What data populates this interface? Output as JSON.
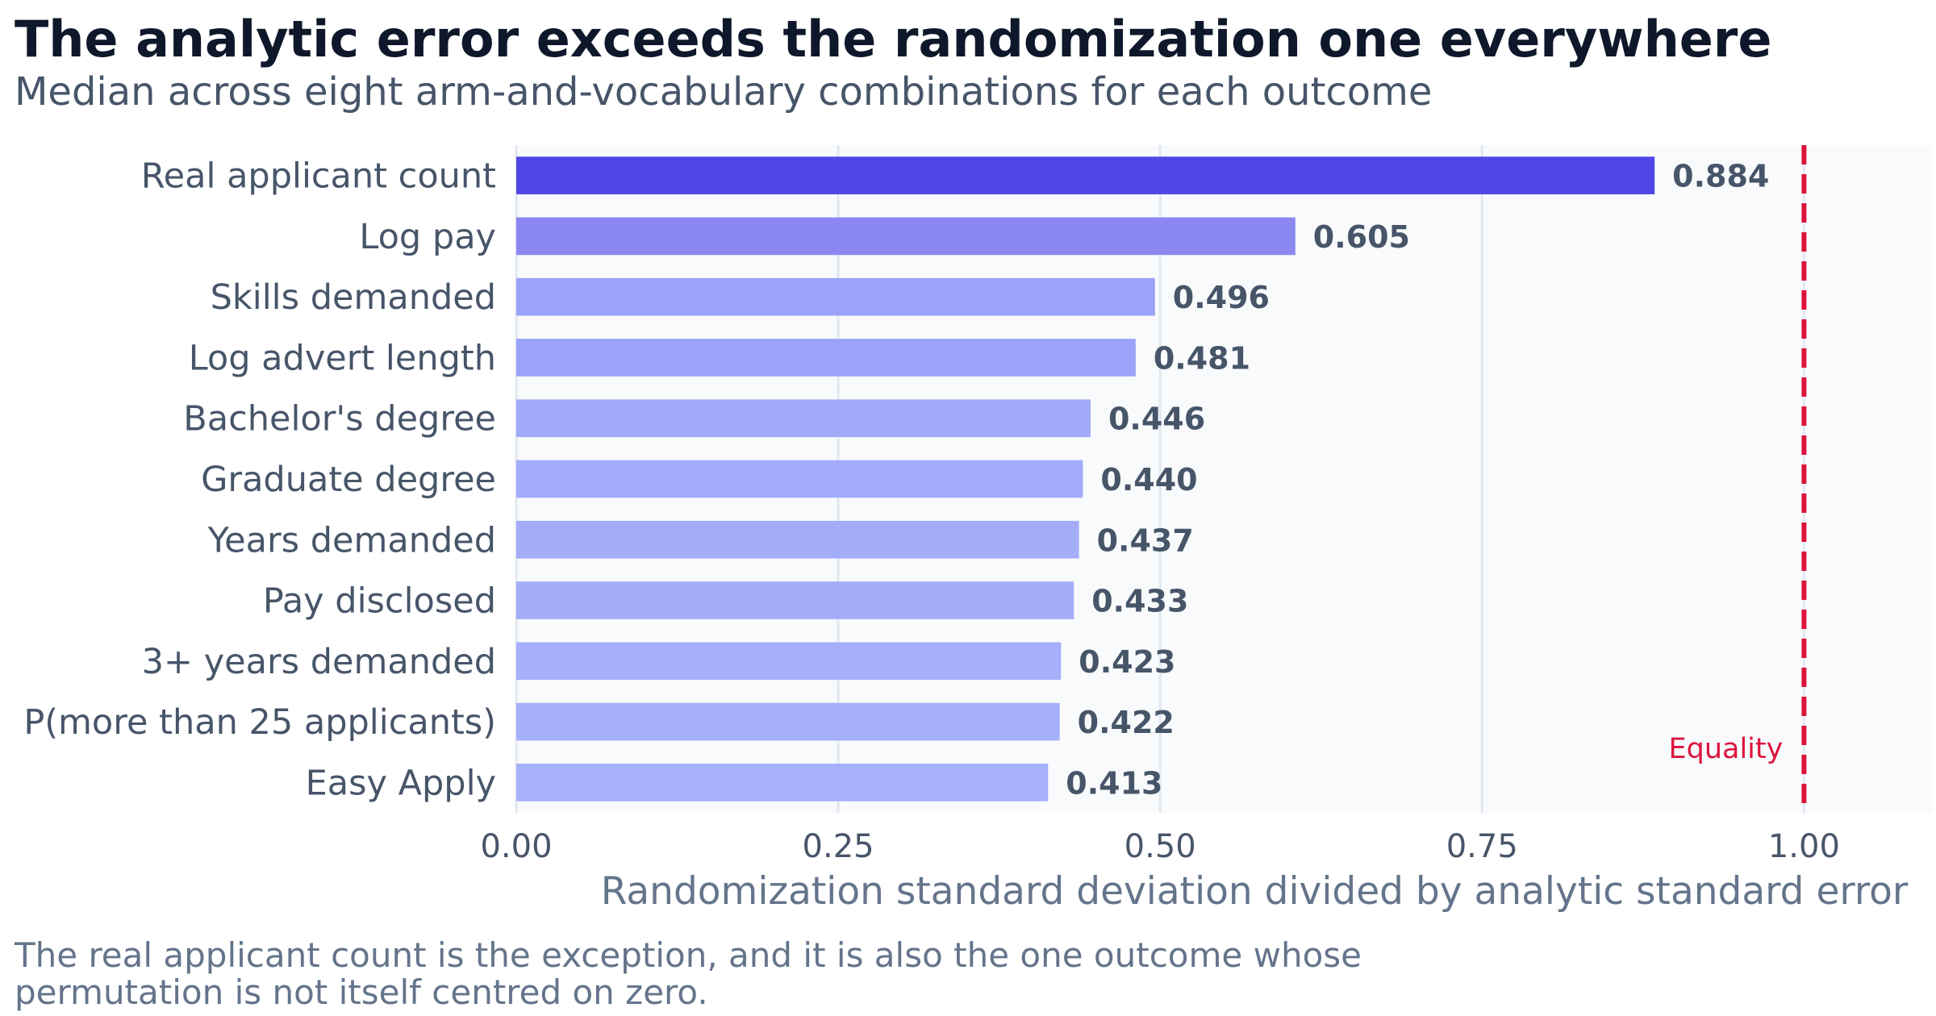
{
  "title": "The analytic error exceeds the randomization one everywhere",
  "subtitle": "Median across eight arm-and-vocabulary combinations for each outcome",
  "note_lines": [
    "The real applicant count is the exception, and it is also the one outcome whose",
    "permutation is not itself centred on zero."
  ],
  "chart_data": {
    "type": "bar",
    "orientation": "horizontal",
    "categories": [
      "Real applicant count",
      "Log pay",
      "Skills demanded",
      "Log advert length",
      "Bachelor's degree",
      "Graduate degree",
      "Years demanded",
      "Pay disclosed",
      "3+ years demanded",
      "P(more than 25 applicants)",
      "Easy Apply"
    ],
    "values": [
      0.884,
      0.605,
      0.496,
      0.481,
      0.446,
      0.44,
      0.437,
      0.433,
      0.423,
      0.422,
      0.413
    ],
    "value_labels": [
      "0.884",
      "0.605",
      "0.496",
      "0.481",
      "0.446",
      "0.440",
      "0.437",
      "0.433",
      "0.423",
      "0.422",
      "0.413"
    ],
    "bar_colors": [
      "#4f46e5",
      "#8b87f1",
      "#9aa3f7",
      "#9aa3f7",
      "#a0aaf9",
      "#a2acfa",
      "#a3adfa",
      "#a3adfa",
      "#a5affb",
      "#a5affb",
      "#a6b0fc"
    ],
    "xlabel": "Randomization standard deviation divided by analytic standard error",
    "xlim": [
      0,
      1.1
    ],
    "xticks": [
      0,
      0.25,
      0.5,
      0.75,
      1.0
    ],
    "xtick_labels": [
      "0.00",
      "0.25",
      "0.50",
      "0.75",
      "1.00"
    ],
    "grid": "vertical",
    "reference_line": {
      "x": 1.0,
      "label": "Equality",
      "color": "#dc143c",
      "style": "dashed"
    },
    "colors": {
      "plot_background": "#f8fafc",
      "grid": "#e2e8f0",
      "tick_text": "#475569",
      "value_text": "#475569"
    }
  }
}
